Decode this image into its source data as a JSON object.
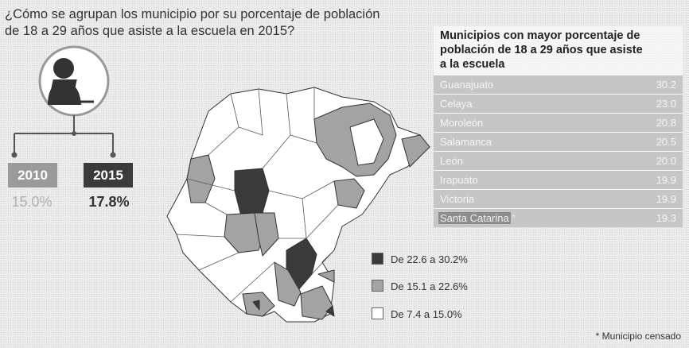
{
  "title": [
    "¿Cómo se agrupan los municipio por su porcentaje de población",
    "de 18 a 29 años que asiste a la escuela en 2015?"
  ],
  "years": [
    {
      "year": "2010",
      "value": "15.0%"
    },
    {
      "year": "2015",
      "value": "17.8%"
    }
  ],
  "table": {
    "title": [
      "Municipios con mayor porcentaje de",
      "población de 18 a 29 años que asiste",
      "a la escuela"
    ],
    "rows": [
      {
        "name": "Guanajuato",
        "value": "30.2"
      },
      {
        "name": "Celaya",
        "value": "23.0"
      },
      {
        "name": "Moroleón",
        "value": "20.8"
      },
      {
        "name": "Salamanca",
        "value": "20.5"
      },
      {
        "name": "León",
        "value": "20.0"
      },
      {
        "name": "Irapuato",
        "value": "19.9"
      },
      {
        "name": "Victoria",
        "value": "19.9"
      },
      {
        "name": "Santa Catarina",
        "mark": "*",
        "value": "19.3"
      }
    ]
  },
  "legend": [
    "De 22.6 a 30.2%",
    "De 15.1 a 22.6%",
    "De 7.4 a 15.0%"
  ],
  "footnote": {
    "mark": "*",
    "text": "Municipio censado"
  }
}
